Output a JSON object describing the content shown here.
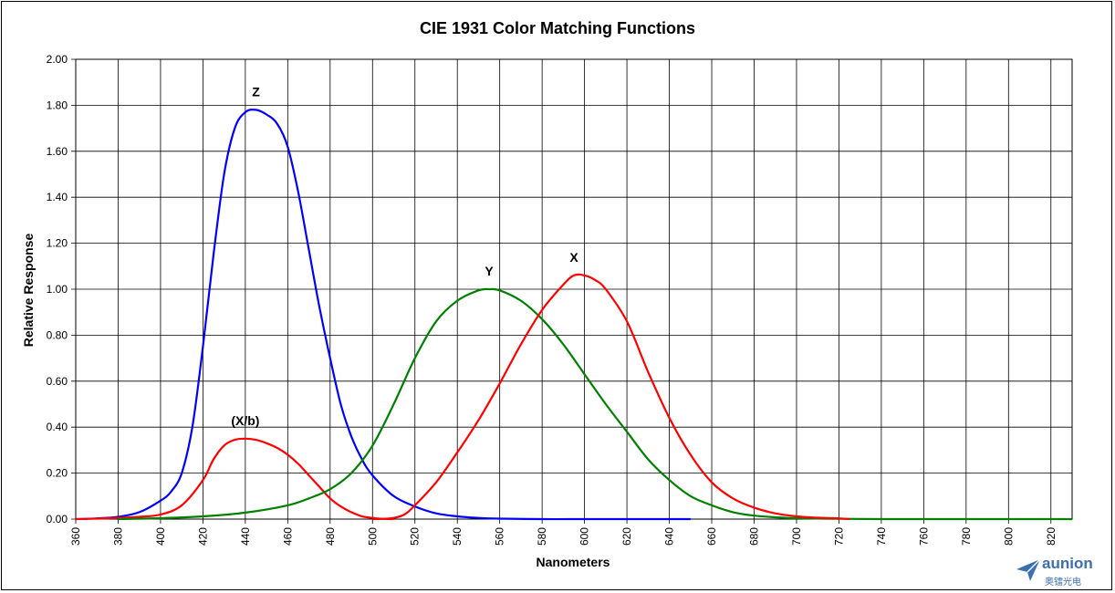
{
  "chart_data": {
    "type": "line",
    "title": "CIE 1931 Color Matching Functions",
    "xlabel": "Nanometers",
    "ylabel": "Relative Response",
    "xlim": [
      360,
      830
    ],
    "ylim": [
      0,
      2
    ],
    "x_ticks": [
      "360",
      "380",
      "400",
      "420",
      "440",
      "460",
      "480",
      "500",
      "520",
      "540",
      "560",
      "580",
      "600",
      "620",
      "640",
      "660",
      "680",
      "700",
      "720",
      "740",
      "760",
      "780",
      "800",
      "820"
    ],
    "y_ticks": [
      "0.00",
      "0.20",
      "0.40",
      "0.60",
      "0.80",
      "1.00",
      "1.20",
      "1.40",
      "1.60",
      "1.80",
      "2.00"
    ],
    "grid": true,
    "series": [
      {
        "name": "Z",
        "color": "#0000ff",
        "x": [
          360,
          370,
          380,
          390,
          400,
          405,
          410,
          415,
          420,
          425,
          430,
          435,
          440,
          445,
          450,
          455,
          460,
          465,
          470,
          475,
          480,
          485,
          490,
          495,
          500,
          510,
          520,
          530,
          540,
          550,
          560,
          580,
          600,
          620,
          650
        ],
        "values": [
          0.0,
          0.003,
          0.01,
          0.03,
          0.08,
          0.12,
          0.2,
          0.4,
          0.75,
          1.15,
          1.5,
          1.7,
          1.77,
          1.78,
          1.76,
          1.72,
          1.62,
          1.42,
          1.17,
          0.92,
          0.7,
          0.5,
          0.36,
          0.26,
          0.19,
          0.1,
          0.055,
          0.025,
          0.012,
          0.005,
          0.002,
          0.0,
          0.0,
          0.0,
          0.0
        ]
      },
      {
        "name": "(X/b)",
        "color": "#ff0000",
        "x": [
          360,
          370,
          380,
          390,
          400,
          410,
          420,
          425,
          430,
          435,
          440,
          445,
          450,
          455,
          460,
          465,
          470,
          475,
          480,
          485,
          490,
          495,
          500,
          505,
          510
        ],
        "values": [
          0.0,
          0.002,
          0.005,
          0.01,
          0.02,
          0.06,
          0.17,
          0.26,
          0.32,
          0.345,
          0.35,
          0.345,
          0.33,
          0.31,
          0.28,
          0.24,
          0.19,
          0.14,
          0.09,
          0.055,
          0.03,
          0.012,
          0.005,
          0.001,
          0.0
        ]
      },
      {
        "name": "Y",
        "color": "#008000",
        "x": [
          380,
          400,
          420,
          440,
          460,
          470,
          480,
          490,
          500,
          510,
          520,
          530,
          540,
          550,
          555,
          560,
          570,
          580,
          590,
          600,
          610,
          620,
          630,
          640,
          650,
          660,
          670,
          680,
          690,
          700,
          720,
          740,
          760,
          780,
          800,
          830
        ],
        "values": [
          0.0,
          0.004,
          0.012,
          0.028,
          0.06,
          0.09,
          0.13,
          0.2,
          0.32,
          0.5,
          0.7,
          0.86,
          0.95,
          0.995,
          1.0,
          0.995,
          0.95,
          0.87,
          0.76,
          0.63,
          0.5,
          0.38,
          0.26,
          0.17,
          0.1,
          0.06,
          0.03,
          0.015,
          0.008,
          0.004,
          0.001,
          0.0,
          0.0,
          0.0,
          0.0,
          0.0
        ]
      },
      {
        "name": "X",
        "color": "#ff0000",
        "x": [
          500,
          505,
          510,
          515,
          520,
          530,
          540,
          550,
          560,
          570,
          580,
          590,
          595,
          600,
          605,
          610,
          620,
          630,
          640,
          650,
          660,
          670,
          680,
          690,
          700,
          710,
          720,
          725
        ],
        "values": [
          0.0,
          0.001,
          0.005,
          0.02,
          0.06,
          0.16,
          0.29,
          0.43,
          0.59,
          0.76,
          0.91,
          1.02,
          1.06,
          1.06,
          1.04,
          1.0,
          0.86,
          0.64,
          0.44,
          0.28,
          0.16,
          0.09,
          0.05,
          0.025,
          0.012,
          0.006,
          0.003,
          0.0
        ]
      }
    ],
    "annotations": [
      {
        "text": "Z",
        "series": "Z"
      },
      {
        "text": "(X/b)",
        "series": "(X/b)"
      },
      {
        "text": "Y",
        "series": "Y"
      },
      {
        "text": "X",
        "series": "X"
      }
    ]
  },
  "logo": {
    "text": "aunion",
    "subtext": "奥镭光电",
    "color": "#3a6fb0"
  }
}
